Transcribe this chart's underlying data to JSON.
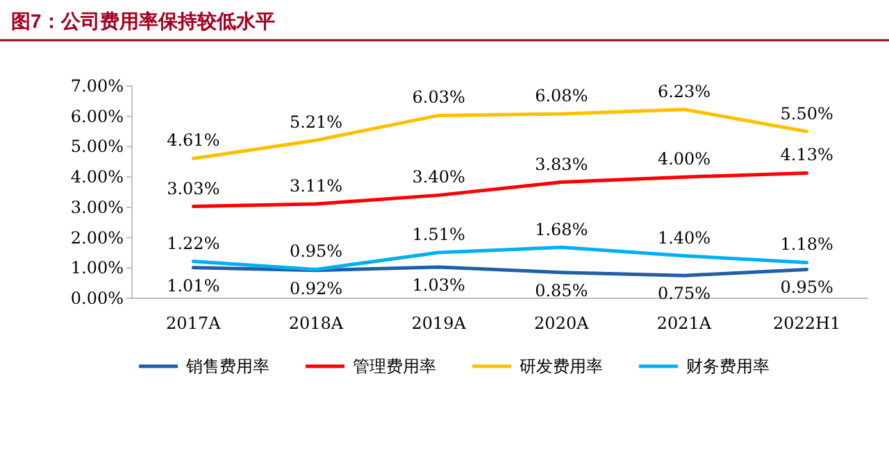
{
  "chart_data": {
    "type": "line",
    "title": "图7：公司费用率保持较低水平",
    "categories": [
      "2017A",
      "2018A",
      "2019A",
      "2020A",
      "2021A",
      "2022H1"
    ],
    "ylim": [
      0,
      7
    ],
    "yticks": [
      {
        "value": 0,
        "label": "0.00%"
      },
      {
        "value": 1,
        "label": "1.00%"
      },
      {
        "value": 2,
        "label": "2.00%"
      },
      {
        "value": 3,
        "label": "3.00%"
      },
      {
        "value": 4,
        "label": "4.00%"
      },
      {
        "value": 5,
        "label": "5.00%"
      },
      {
        "value": 6,
        "label": "6.00%"
      },
      {
        "value": 7,
        "label": "7.00%"
      }
    ],
    "grid": false,
    "legend": "bottom",
    "marker": "none",
    "line_style": "solid",
    "series": [
      {
        "name": "销售费用率",
        "color": "#1f5fa8",
        "values": [
          1.01,
          0.92,
          1.03,
          0.85,
          0.75,
          0.95
        ],
        "value_labels": [
          "1.01%",
          "0.92%",
          "1.03%",
          "0.85%",
          "0.75%",
          "0.95%"
        ]
      },
      {
        "name": "管理费用率",
        "color": "#ff0000",
        "values": [
          3.03,
          3.11,
          3.4,
          3.83,
          4.0,
          4.13
        ],
        "value_labels": [
          "3.03%",
          "3.11%",
          "3.40%",
          "3.83%",
          "4.00%",
          "4.13%"
        ]
      },
      {
        "name": "研发费用率",
        "color": "#ffc000",
        "values": [
          4.61,
          5.21,
          6.03,
          6.08,
          6.23,
          5.5
        ],
        "value_labels": [
          "4.61%",
          "5.21%",
          "6.03%",
          "6.08%",
          "6.23%",
          "5.50%"
        ]
      },
      {
        "name": "财务费用率",
        "color": "#00b0f0",
        "values": [
          1.22,
          0.95,
          1.51,
          1.68,
          1.4,
          1.18
        ],
        "value_labels": [
          "1.22%",
          "0.95%",
          "1.51%",
          "1.68%",
          "1.40%",
          "1.18%"
        ]
      }
    ]
  }
}
